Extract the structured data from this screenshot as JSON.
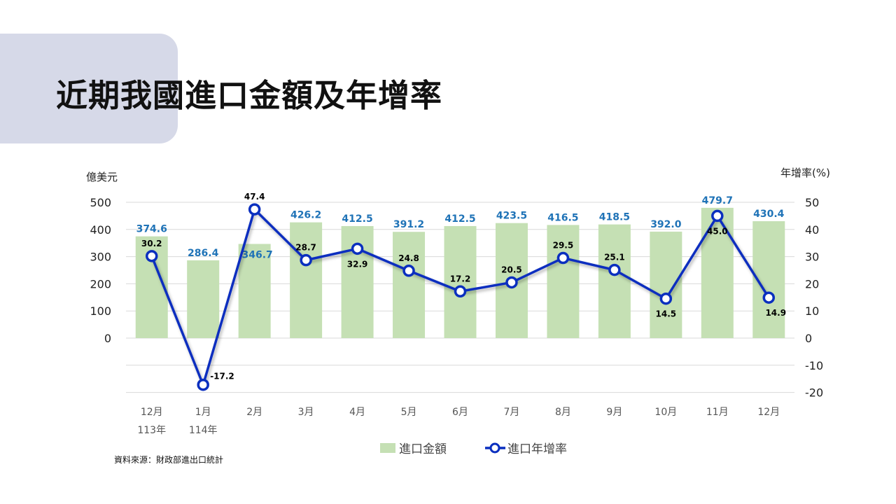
{
  "page": {
    "title": "近期我國進口金額及年增率",
    "source": "資料來源：財政部進出口統計"
  },
  "colors": {
    "bar": "#c5e0b4",
    "line": "#0a2fbf",
    "bar_label": "#1f73b7",
    "line_label": "#000000",
    "title_box": "#d6d9e8"
  },
  "chart_data": {
    "type": "bar+line",
    "categories": [
      "12月",
      "1月",
      "2月",
      "3月",
      "4月",
      "5月",
      "6月",
      "7月",
      "8月",
      "9月",
      "10月",
      "11月",
      "12月"
    ],
    "category_sublabels": [
      "113年",
      "114年",
      "",
      "",
      "",
      "",
      "",
      "",
      "",
      "",
      "",
      "",
      ""
    ],
    "series": [
      {
        "name": "進口金額",
        "type": "bar",
        "axis": "left",
        "values": [
          374.6,
          286.4,
          346.7,
          426.2,
          412.5,
          391.2,
          412.5,
          423.5,
          416.5,
          418.5,
          392.0,
          479.7,
          430.4
        ],
        "labels": [
          "374.6",
          "286.4",
          "346.7",
          "426.2",
          "412.5",
          "391.2",
          "412.5",
          "423.5",
          "416.5",
          "418.5",
          "392.0",
          "479.7",
          "430.4"
        ]
      },
      {
        "name": "進口年增率",
        "type": "line",
        "axis": "right",
        "values": [
          30.2,
          -17.2,
          47.4,
          28.7,
          32.9,
          24.8,
          17.2,
          20.5,
          29.5,
          25.1,
          14.5,
          45.0,
          14.9
        ],
        "labels": [
          "30.2",
          "-17.2",
          "47.4",
          "28.7",
          "32.9",
          "24.8",
          "17.2",
          "20.5",
          "29.5",
          "25.1",
          "14.5",
          "45.0",
          "14.9"
        ]
      }
    ],
    "y_left": {
      "label": "億美元",
      "range": [
        -200,
        500
      ],
      "ticks": [
        "0",
        "100",
        "200",
        "300",
        "400",
        "500"
      ],
      "tick_values": [
        0,
        100,
        200,
        300,
        400,
        500
      ]
    },
    "y_right": {
      "label": "年增率(%)",
      "range": [
        -20,
        50
      ],
      "ticks": [
        "-20",
        "-10",
        "0",
        "10",
        "20",
        "30",
        "40",
        "50"
      ],
      "tick_values": [
        -20,
        -10,
        0,
        10,
        20,
        30,
        40,
        50
      ]
    },
    "grid": true,
    "legend": "bottom"
  }
}
